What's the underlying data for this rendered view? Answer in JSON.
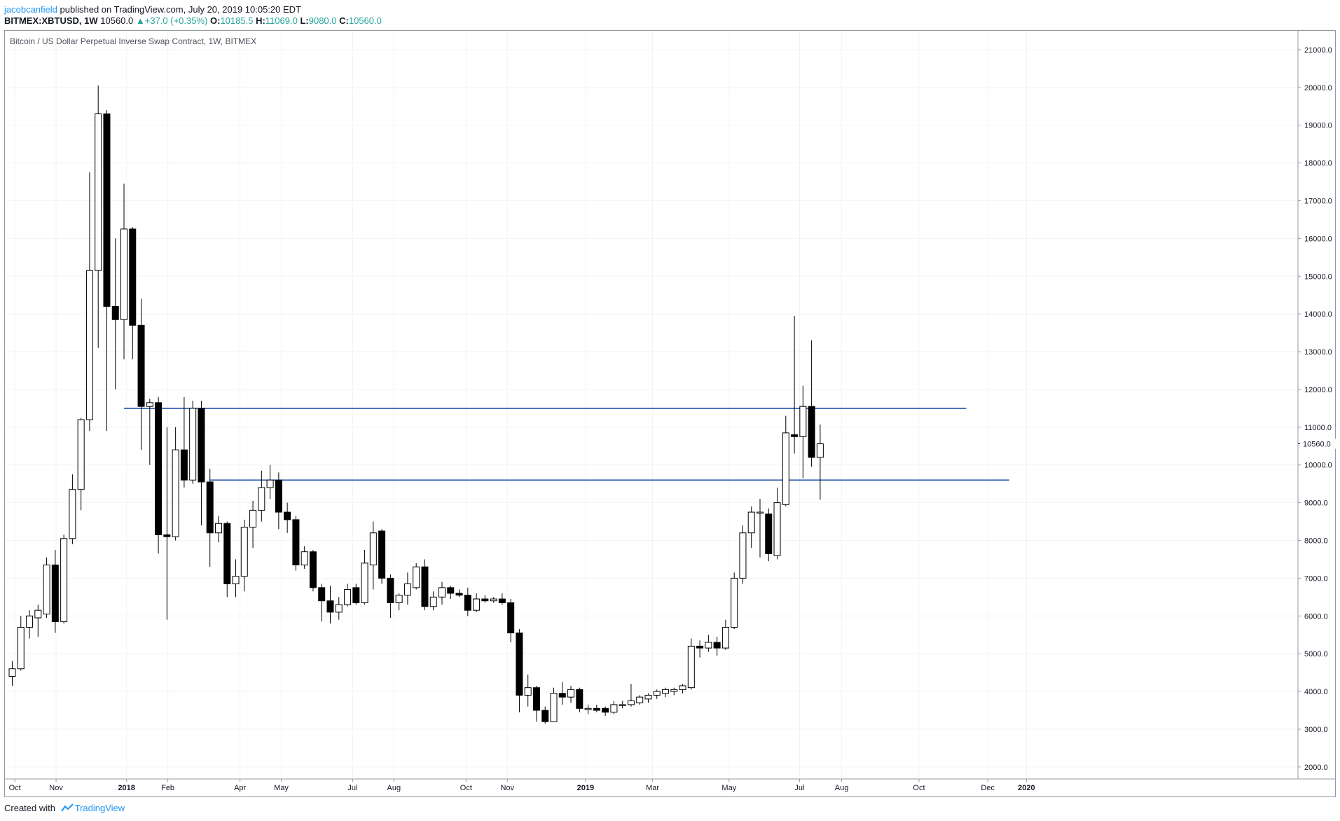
{
  "header": {
    "author": "jacobcanfield",
    "published_text": "published on TradingView.com, July 20, 2019 10:05:20 EDT",
    "symbol": "BITMEX:XBTUSD, 1W",
    "last": "10560.0",
    "change": "+37.0 (+0.35%)",
    "o_label": "O:",
    "o_value": "10185.5",
    "h_label": "H:",
    "h_value": "11069.0",
    "l_label": "L:",
    "l_value": "9080.0",
    "c_label": "C:",
    "c_value": "10560.0"
  },
  "chart_title": "Bitcoin / US Dollar Perpetual Inverse Swap Contract, 1W, BITMEX",
  "footer": {
    "created_with": "Created with",
    "brand": "TradingView"
  },
  "colors": {
    "up_fill": "#ffffff",
    "down_fill": "#000000",
    "wick": "#000000",
    "hline": "#1e4fa8",
    "price_tag_bg": "#ffffff",
    "grid": "#f2f3f5"
  },
  "chart_data": {
    "type": "candlestick",
    "ylim": [
      1700,
      21500
    ],
    "y_ticks": [
      2000,
      3000,
      4000,
      5000,
      6000,
      7000,
      8000,
      9000,
      10000,
      11000,
      12000,
      13000,
      14000,
      15000,
      16000,
      17000,
      18000,
      19000,
      20000,
      21000
    ],
    "y_tick_labels": [
      "2000.0",
      "3000.0",
      "4000.0",
      "5000.0",
      "6000.0",
      "7000.0",
      "8000.0",
      "9000.0",
      "10000.0",
      "11000.0",
      "12000.0",
      "13000.0",
      "14000.0",
      "15000.0",
      "16000.0",
      "17000.0",
      "18000.0",
      "19000.0",
      "20000.0",
      "21000.0"
    ],
    "last_price": 10560,
    "last_price_label": "10560.0",
    "x_ticks": [
      {
        "label": "Oct",
        "idx": 0.3,
        "bold": false
      },
      {
        "label": "Nov",
        "idx": 5.1,
        "bold": false
      },
      {
        "label": "2018",
        "idx": 13.3,
        "bold": true
      },
      {
        "label": "Feb",
        "idx": 18.1,
        "bold": false
      },
      {
        "label": "Apr",
        "idx": 26.5,
        "bold": false
      },
      {
        "label": "May",
        "idx": 31.3,
        "bold": false
      },
      {
        "label": "Jul",
        "idx": 39.6,
        "bold": false
      },
      {
        "label": "Aug",
        "idx": 44.4,
        "bold": false
      },
      {
        "label": "Oct",
        "idx": 52.8,
        "bold": false
      },
      {
        "label": "Nov",
        "idx": 57.6,
        "bold": false
      },
      {
        "label": "2019",
        "idx": 66.7,
        "bold": true
      },
      {
        "label": "Mar",
        "idx": 74.5,
        "bold": false
      },
      {
        "label": "May",
        "idx": 83.4,
        "bold": false
      },
      {
        "label": "Jul",
        "idx": 91.6,
        "bold": false
      },
      {
        "label": "Aug",
        "idx": 96.5,
        "bold": false
      },
      {
        "label": "Oct",
        "idx": 105.5,
        "bold": false
      },
      {
        "label": "Dec",
        "idx": 113.5,
        "bold": false
      },
      {
        "label": "2020",
        "idx": 118.0,
        "bold": true
      }
    ],
    "horizontal_lines": [
      {
        "price": 11500,
        "from_idx": 13.0,
        "to_idx": 111.0
      },
      {
        "price": 9600,
        "from_idx": 23.0,
        "to_idx": 116.0
      }
    ],
    "candles": [
      {
        "o": 4400,
        "h": 4800,
        "l": 4150,
        "c": 4600
      },
      {
        "o": 4600,
        "h": 6000,
        "l": 4550,
        "c": 5700
      },
      {
        "o": 5700,
        "h": 6150,
        "l": 5400,
        "c": 6000
      },
      {
        "o": 5950,
        "h": 6300,
        "l": 5450,
        "c": 6150
      },
      {
        "o": 6050,
        "h": 7550,
        "l": 5950,
        "c": 7350
      },
      {
        "o": 7350,
        "h": 7750,
        "l": 5550,
        "c": 5850
      },
      {
        "o": 5850,
        "h": 8150,
        "l": 5800,
        "c": 8050
      },
      {
        "o": 8050,
        "h": 9750,
        "l": 7900,
        "c": 9350
      },
      {
        "o": 9350,
        "h": 11250,
        "l": 8800,
        "c": 11200
      },
      {
        "o": 11200,
        "h": 17750,
        "l": 10900,
        "c": 15150
      },
      {
        "o": 15150,
        "h": 20050,
        "l": 13100,
        "c": 19300
      },
      {
        "o": 19300,
        "h": 19400,
        "l": 10900,
        "c": 14200
      },
      {
        "o": 14200,
        "h": 16000,
        "l": 12000,
        "c": 13850
      },
      {
        "o": 13850,
        "h": 17450,
        "l": 12800,
        "c": 16250
      },
      {
        "o": 16250,
        "h": 16300,
        "l": 12800,
        "c": 13700
      },
      {
        "o": 13700,
        "h": 14400,
        "l": 10400,
        "c": 11550
      },
      {
        "o": 11550,
        "h": 11750,
        "l": 10000,
        "c": 11650
      },
      {
        "o": 11650,
        "h": 11800,
        "l": 7650,
        "c": 8150
      },
      {
        "o": 8150,
        "h": 11000,
        "l": 5900,
        "c": 8100
      },
      {
        "o": 8100,
        "h": 11000,
        "l": 8000,
        "c": 10400
      },
      {
        "o": 10400,
        "h": 11800,
        "l": 9400,
        "c": 9600
      },
      {
        "o": 9600,
        "h": 11700,
        "l": 9500,
        "c": 11500
      },
      {
        "o": 11500,
        "h": 11700,
        "l": 8400,
        "c": 9550
      },
      {
        "o": 9550,
        "h": 9900,
        "l": 7300,
        "c": 8200
      },
      {
        "o": 8200,
        "h": 8650,
        "l": 7950,
        "c": 8450
      },
      {
        "o": 8450,
        "h": 8500,
        "l": 6500,
        "c": 6850
      },
      {
        "o": 6850,
        "h": 7500,
        "l": 6500,
        "c": 7050
      },
      {
        "o": 7050,
        "h": 8550,
        "l": 6650,
        "c": 8350
      },
      {
        "o": 8350,
        "h": 9050,
        "l": 7800,
        "c": 8800
      },
      {
        "o": 8800,
        "h": 9850,
        "l": 8500,
        "c": 9400
      },
      {
        "o": 9400,
        "h": 10000,
        "l": 9100,
        "c": 9600
      },
      {
        "o": 9600,
        "h": 9800,
        "l": 8300,
        "c": 8750
      },
      {
        "o": 8750,
        "h": 9000,
        "l": 8200,
        "c": 8550
      },
      {
        "o": 8550,
        "h": 8650,
        "l": 7200,
        "c": 7350
      },
      {
        "o": 7350,
        "h": 7850,
        "l": 7250,
        "c": 7700
      },
      {
        "o": 7700,
        "h": 7750,
        "l": 6650,
        "c": 6750
      },
      {
        "o": 6750,
        "h": 6850,
        "l": 5850,
        "c": 6400
      },
      {
        "o": 6400,
        "h": 6800,
        "l": 5800,
        "c": 6100
      },
      {
        "o": 6100,
        "h": 6500,
        "l": 5900,
        "c": 6300
      },
      {
        "o": 6300,
        "h": 6850,
        "l": 6250,
        "c": 6700
      },
      {
        "o": 6750,
        "h": 6850,
        "l": 6300,
        "c": 6350
      },
      {
        "o": 6350,
        "h": 7750,
        "l": 6300,
        "c": 7400
      },
      {
        "o": 7350,
        "h": 8500,
        "l": 6700,
        "c": 8200
      },
      {
        "o": 8250,
        "h": 8300,
        "l": 6850,
        "c": 7000
      },
      {
        "o": 7000,
        "h": 7100,
        "l": 5950,
        "c": 6350
      },
      {
        "o": 6350,
        "h": 6600,
        "l": 6150,
        "c": 6550
      },
      {
        "o": 6550,
        "h": 7150,
        "l": 6300,
        "c": 6850
      },
      {
        "o": 6750,
        "h": 7400,
        "l": 6700,
        "c": 7300
      },
      {
        "o": 7300,
        "h": 7500,
        "l": 6150,
        "c": 6250
      },
      {
        "o": 6250,
        "h": 6650,
        "l": 6150,
        "c": 6500
      },
      {
        "o": 6500,
        "h": 6900,
        "l": 6300,
        "c": 6750
      },
      {
        "o": 6750,
        "h": 6800,
        "l": 6450,
        "c": 6600
      },
      {
        "o": 6600,
        "h": 6700,
        "l": 6500,
        "c": 6550
      },
      {
        "o": 6550,
        "h": 6750,
        "l": 6000,
        "c": 6150
      },
      {
        "o": 6150,
        "h": 6600,
        "l": 6100,
        "c": 6450
      },
      {
        "o": 6450,
        "h": 6550,
        "l": 6350,
        "c": 6400
      },
      {
        "o": 6400,
        "h": 6500,
        "l": 6350,
        "c": 6450
      },
      {
        "o": 6450,
        "h": 6600,
        "l": 6300,
        "c": 6350
      },
      {
        "o": 6350,
        "h": 6450,
        "l": 5300,
        "c": 5550
      },
      {
        "o": 5550,
        "h": 5650,
        "l": 3450,
        "c": 3900
      },
      {
        "o": 3900,
        "h": 4450,
        "l": 3600,
        "c": 4100
      },
      {
        "o": 4100,
        "h": 4150,
        "l": 3200,
        "c": 3500
      },
      {
        "o": 3500,
        "h": 3600,
        "l": 3150,
        "c": 3200
      },
      {
        "o": 3200,
        "h": 4100,
        "l": 3200,
        "c": 3950
      },
      {
        "o": 3950,
        "h": 4250,
        "l": 3650,
        "c": 3850
      },
      {
        "o": 3850,
        "h": 4150,
        "l": 3700,
        "c": 4050
      },
      {
        "o": 4050,
        "h": 4100,
        "l": 3450,
        "c": 3550
      },
      {
        "o": 3550,
        "h": 3650,
        "l": 3400,
        "c": 3550
      },
      {
        "o": 3550,
        "h": 3650,
        "l": 3450,
        "c": 3500
      },
      {
        "o": 3550,
        "h": 3600,
        "l": 3350,
        "c": 3450
      },
      {
        "o": 3450,
        "h": 3750,
        "l": 3400,
        "c": 3650
      },
      {
        "o": 3650,
        "h": 3750,
        "l": 3550,
        "c": 3650
      },
      {
        "o": 3650,
        "h": 4200,
        "l": 3600,
        "c": 3750
      },
      {
        "o": 3700,
        "h": 3900,
        "l": 3650,
        "c": 3850
      },
      {
        "o": 3800,
        "h": 3950,
        "l": 3700,
        "c": 3900
      },
      {
        "o": 3900,
        "h": 4050,
        "l": 3800,
        "c": 4000
      },
      {
        "o": 3950,
        "h": 4100,
        "l": 3850,
        "c": 4050
      },
      {
        "o": 4000,
        "h": 4100,
        "l": 3900,
        "c": 4050
      },
      {
        "o": 4050,
        "h": 4200,
        "l": 3950,
        "c": 4150
      },
      {
        "o": 4100,
        "h": 5400,
        "l": 4050,
        "c": 5200
      },
      {
        "o": 5200,
        "h": 5350,
        "l": 4900,
        "c": 5150
      },
      {
        "o": 5150,
        "h": 5500,
        "l": 5050,
        "c": 5300
      },
      {
        "o": 5300,
        "h": 5450,
        "l": 4950,
        "c": 5150
      },
      {
        "o": 5150,
        "h": 5900,
        "l": 5100,
        "c": 5700
      },
      {
        "o": 5700,
        "h": 7150,
        "l": 5650,
        "c": 7000
      },
      {
        "o": 7000,
        "h": 8400,
        "l": 6850,
        "c": 8200
      },
      {
        "o": 8200,
        "h": 8900,
        "l": 7800,
        "c": 8750
      },
      {
        "o": 8750,
        "h": 9100,
        "l": 7550,
        "c": 8750
      },
      {
        "o": 8700,
        "h": 8850,
        "l": 7450,
        "c": 7650
      },
      {
        "o": 7600,
        "h": 9400,
        "l": 7500,
        "c": 9000
      },
      {
        "o": 8950,
        "h": 11300,
        "l": 8900,
        "c": 10850
      },
      {
        "o": 10800,
        "h": 13950,
        "l": 10300,
        "c": 10750
      },
      {
        "o": 10750,
        "h": 12100,
        "l": 9650,
        "c": 11550
      },
      {
        "o": 11550,
        "h": 13300,
        "l": 9950,
        "c": 10200
      },
      {
        "o": 10200,
        "h": 11070,
        "l": 9080,
        "c": 10560
      }
    ]
  }
}
